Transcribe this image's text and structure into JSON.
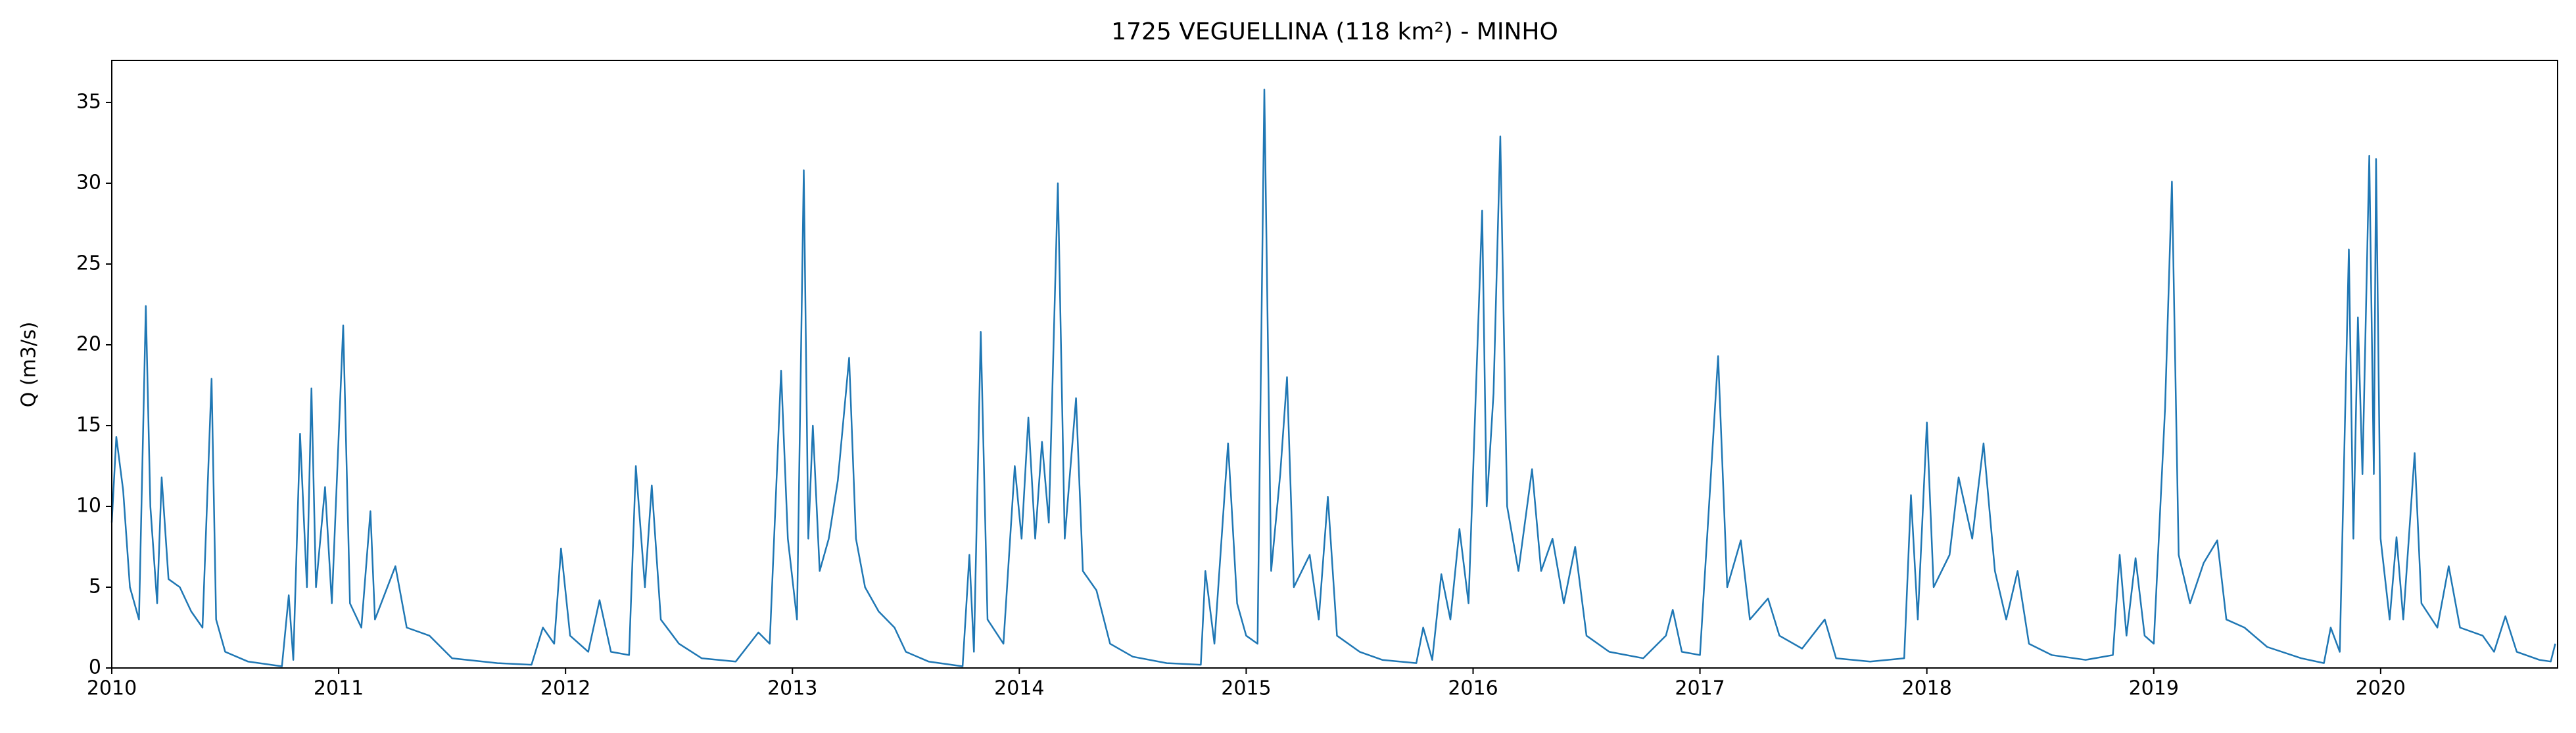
{
  "chart_data": {
    "type": "line",
    "title": "1725 VEGUELLINA (118 km²) - MINHO",
    "ylabel": "Q (m3/s)",
    "x": [
      2010.0,
      2010.02,
      2010.05,
      2010.08,
      2010.12,
      2010.15,
      2010.17,
      2010.2,
      2010.22,
      2010.25,
      2010.3,
      2010.35,
      2010.4,
      2010.44,
      2010.46,
      2010.5,
      2010.6,
      2010.75,
      2010.78,
      2010.8,
      2010.83,
      2010.86,
      2010.88,
      2010.9,
      2010.94,
      2010.97,
      2011.02,
      2011.05,
      2011.1,
      2011.14,
      2011.16,
      2011.25,
      2011.3,
      2011.4,
      2011.5,
      2011.7,
      2011.85,
      2011.9,
      2011.95,
      2011.98,
      2012.02,
      2012.1,
      2012.15,
      2012.2,
      2012.28,
      2012.31,
      2012.35,
      2012.38,
      2012.42,
      2012.5,
      2012.6,
      2012.75,
      2012.85,
      2012.9,
      2012.95,
      2012.98,
      2013.02,
      2013.05,
      2013.07,
      2013.09,
      2013.12,
      2013.16,
      2013.2,
      2013.25,
      2013.28,
      2013.32,
      2013.38,
      2013.45,
      2013.5,
      2013.6,
      2013.75,
      2013.78,
      2013.8,
      2013.83,
      2013.86,
      2013.93,
      2013.98,
      2014.01,
      2014.04,
      2014.07,
      2014.1,
      2014.13,
      2014.17,
      2014.2,
      2014.25,
      2014.28,
      2014.34,
      2014.4,
      2014.5,
      2014.65,
      2014.8,
      2014.82,
      2014.86,
      2014.92,
      2014.96,
      2015.0,
      2015.05,
      2015.08,
      2015.11,
      2015.15,
      2015.18,
      2015.21,
      2015.28,
      2015.32,
      2015.36,
      2015.4,
      2015.5,
      2015.6,
      2015.75,
      2015.78,
      2015.82,
      2015.86,
      2015.9,
      2015.94,
      2015.98,
      2016.04,
      2016.06,
      2016.09,
      2016.12,
      2016.15,
      2016.2,
      2016.26,
      2016.3,
      2016.35,
      2016.4,
      2016.45,
      2016.5,
      2016.6,
      2016.75,
      2016.85,
      2016.88,
      2016.92,
      2017.0,
      2017.08,
      2017.12,
      2017.18,
      2017.22,
      2017.3,
      2017.35,
      2017.45,
      2017.55,
      2017.6,
      2017.75,
      2017.9,
      2017.93,
      2017.96,
      2018.0,
      2018.03,
      2018.1,
      2018.14,
      2018.2,
      2018.25,
      2018.3,
      2018.35,
      2018.4,
      2018.45,
      2018.55,
      2018.7,
      2018.82,
      2018.85,
      2018.88,
      2018.92,
      2018.96,
      2019.0,
      2019.05,
      2019.08,
      2019.11,
      2019.16,
      2019.22,
      2019.28,
      2019.32,
      2019.4,
      2019.5,
      2019.65,
      2019.75,
      2019.78,
      2019.82,
      2019.86,
      2019.88,
      2019.9,
      2019.92,
      2019.95,
      2019.97,
      2019.98,
      2020.0,
      2020.04,
      2020.07,
      2020.1,
      2020.15,
      2020.18,
      2020.25,
      2020.3,
      2020.35,
      2020.45,
      2020.5,
      2020.55,
      2020.6,
      2020.7,
      2020.75,
      2020.77
    ],
    "series": [
      {
        "color": "#1f77b4",
        "values": [
          9,
          14.3,
          11,
          5,
          3,
          22.4,
          10,
          4,
          11.8,
          5.5,
          5,
          3.5,
          2.5,
          17.9,
          3,
          1,
          0.4,
          0.1,
          4.5,
          0.5,
          14.5,
          5,
          17.3,
          5,
          11.2,
          4,
          21.2,
          4,
          2.5,
          9.7,
          3,
          6.3,
          2.5,
          2,
          0.6,
          0.3,
          0.2,
          2.5,
          1.5,
          7.4,
          2,
          1,
          4.2,
          1,
          0.8,
          12.5,
          5,
          11.3,
          3,
          1.5,
          0.6,
          0.4,
          2.2,
          1.5,
          18.4,
          8,
          3,
          30.8,
          8,
          15,
          6,
          8,
          11.6,
          19.2,
          8,
          5,
          3.5,
          2.5,
          1,
          0.4,
          0.1,
          7,
          1,
          20.8,
          3,
          1.5,
          12.5,
          8,
          15.5,
          8,
          14,
          9,
          30,
          8,
          16.7,
          6,
          4.8,
          1.5,
          0.7,
          0.3,
          0.2,
          6,
          1.5,
          13.9,
          4,
          2,
          1.5,
          35.8,
          6,
          12,
          18,
          5,
          7,
          3,
          10.6,
          2,
          1,
          0.5,
          0.3,
          2.5,
          0.5,
          5.8,
          3,
          8.6,
          4,
          28.3,
          10,
          17,
          32.9,
          10,
          6,
          12.3,
          6,
          8,
          4,
          7.5,
          2,
          1,
          0.6,
          2,
          3.6,
          1,
          0.8,
          19.3,
          5,
          7.9,
          3,
          4.3,
          2,
          1.2,
          3,
          0.6,
          0.4,
          0.6,
          10.7,
          3,
          15.2,
          5,
          7,
          11.8,
          8,
          13.9,
          6,
          3,
          6,
          1.5,
          0.8,
          0.5,
          0.8,
          7,
          2,
          6.8,
          2,
          1.5,
          16.1,
          30.1,
          7,
          4,
          6.5,
          7.9,
          3,
          2.5,
          1.3,
          0.6,
          0.3,
          2.5,
          1,
          25.9,
          8,
          21.7,
          12,
          31.7,
          12,
          31.5,
          8,
          3,
          8.1,
          3,
          13.3,
          4,
          2.5,
          6.3,
          2.5,
          2,
          1,
          3.2,
          1,
          0.5,
          0.4,
          1.5
        ]
      }
    ],
    "xlim": [
      2010,
      2020.78
    ],
    "xticks": [
      2010,
      2011,
      2012,
      2013,
      2014,
      2015,
      2016,
      2017,
      2018,
      2019,
      2020
    ],
    "ylim": [
      0,
      37.6
    ],
    "yticks": [
      0,
      5,
      10,
      15,
      20,
      25,
      30,
      35
    ],
    "grid": false
  }
}
